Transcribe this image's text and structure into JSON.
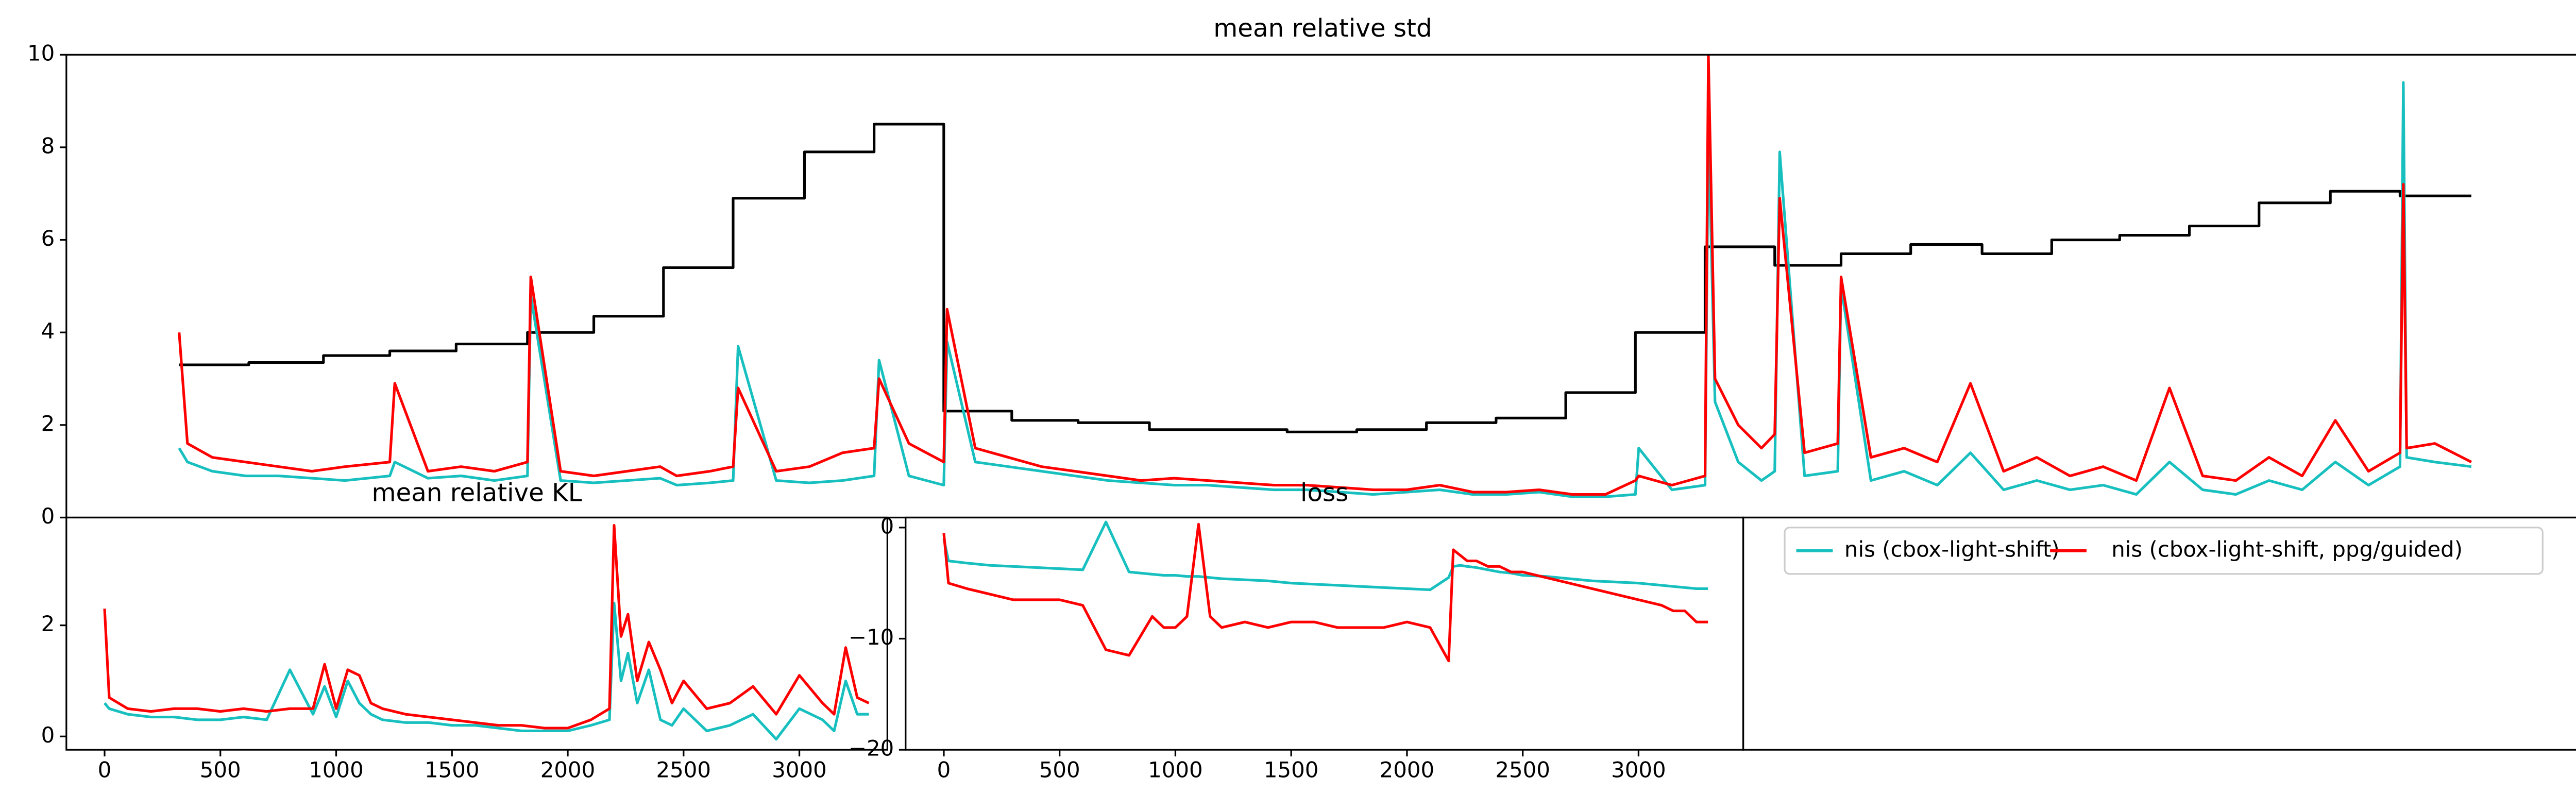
{
  "chart_data": [
    {
      "type": "line",
      "title": "mean relative std",
      "xlim": [
        -68,
        1447
      ],
      "ylim": [
        0,
        10
      ],
      "yticks": [
        0,
        2,
        4,
        6,
        8,
        10
      ],
      "series": [
        {
          "color": "#000000",
          "step": "post",
          "x": [
            0,
            42,
            87,
            127,
            167,
            210,
            250,
            292,
            334,
            377,
            419,
            461,
            502,
            542,
            585,
            627,
            668,
            710,
            752,
            794,
            836,
            878,
            920,
            962,
            1002,
            1044,
            1087,
            1129,
            1170,
            1212,
            1254,
            1297,
            1339,
            1382
          ],
          "values": [
            3.3,
            3.35,
            3.5,
            3.6,
            3.75,
            4.0,
            4.35,
            5.4,
            6.9,
            7.9,
            8.5,
            2.3,
            2.1,
            2.05,
            1.9,
            1.9,
            1.85,
            1.9,
            2.05,
            2.15,
            2.7,
            4.0,
            5.85,
            5.45,
            5.7,
            5.9,
            5.7,
            6.0,
            6.1,
            6.3,
            6.8,
            7.05,
            6.95,
            6.95
          ]
        },
        {
          "name": "nis (cbox-light-shift)",
          "color": "#17bfbf",
          "x": [
            0,
            5,
            20,
            40,
            60,
            80,
            100,
            127,
            130,
            150,
            170,
            190,
            210,
            212,
            230,
            250,
            270,
            290,
            300,
            320,
            334,
            337,
            360,
            380,
            400,
            419,
            422,
            440,
            461,
            463,
            480,
            500,
            520,
            540,
            560,
            580,
            600,
            620,
            640,
            660,
            680,
            700,
            720,
            740,
            760,
            780,
            800,
            820,
            840,
            860,
            878,
            880,
            900,
            920,
            922,
            926,
            940,
            954,
            962,
            965,
            980,
            1000,
            1002,
            1020,
            1040,
            1060,
            1080,
            1100,
            1120,
            1140,
            1160,
            1180,
            1200,
            1220,
            1240,
            1260,
            1280,
            1300,
            1320,
            1339,
            1341,
            1343,
            1360,
            1382
          ],
          "values": [
            1.5,
            1.2,
            1.0,
            0.9,
            0.9,
            0.85,
            0.8,
            0.9,
            1.2,
            0.85,
            0.9,
            0.8,
            0.9,
            4.8,
            0.8,
            0.75,
            0.8,
            0.85,
            0.7,
            0.75,
            0.8,
            3.7,
            0.8,
            0.75,
            0.8,
            0.9,
            3.4,
            0.9,
            0.7,
            3.8,
            1.2,
            1.1,
            1.0,
            0.9,
            0.8,
            0.75,
            0.7,
            0.7,
            0.65,
            0.6,
            0.6,
            0.55,
            0.5,
            0.55,
            0.6,
            0.5,
            0.5,
            0.55,
            0.45,
            0.45,
            0.5,
            1.5,
            0.6,
            0.7,
            8.5,
            2.5,
            1.2,
            0.8,
            1.0,
            7.9,
            0.9,
            1.0,
            5.0,
            0.8,
            1.0,
            0.7,
            1.4,
            0.6,
            0.8,
            0.6,
            0.7,
            0.5,
            1.2,
            0.6,
            0.5,
            0.8,
            0.6,
            1.2,
            0.7,
            1.1,
            9.4,
            1.3,
            1.2,
            1.1
          ]
        },
        {
          "name": "nis (cbox-light-shift, ppg/guided)",
          "color": "#ff0000",
          "x": [
            0,
            5,
            20,
            40,
            60,
            80,
            100,
            127,
            130,
            150,
            170,
            190,
            210,
            212,
            230,
            250,
            270,
            290,
            300,
            320,
            334,
            337,
            360,
            380,
            400,
            419,
            422,
            440,
            461,
            463,
            480,
            500,
            520,
            540,
            560,
            580,
            600,
            620,
            640,
            660,
            680,
            700,
            720,
            740,
            760,
            780,
            800,
            820,
            840,
            860,
            878,
            880,
            900,
            920,
            922,
            926,
            940,
            954,
            962,
            965,
            980,
            1000,
            1002,
            1020,
            1040,
            1060,
            1080,
            1100,
            1120,
            1140,
            1160,
            1180,
            1200,
            1220,
            1240,
            1260,
            1280,
            1300,
            1320,
            1339,
            1341,
            1343,
            1360,
            1382
          ],
          "values": [
            4.0,
            1.6,
            1.3,
            1.2,
            1.1,
            1.0,
            1.1,
            1.2,
            2.9,
            1.0,
            1.1,
            1.0,
            1.2,
            5.2,
            1.0,
            0.9,
            1.0,
            1.1,
            0.9,
            1.0,
            1.1,
            2.8,
            1.0,
            1.1,
            1.4,
            1.5,
            3.0,
            1.6,
            1.2,
            4.5,
            1.5,
            1.3,
            1.1,
            1.0,
            0.9,
            0.8,
            0.85,
            0.8,
            0.75,
            0.7,
            0.7,
            0.65,
            0.6,
            0.6,
            0.7,
            0.55,
            0.55,
            0.6,
            0.5,
            0.5,
            0.8,
            0.9,
            0.7,
            0.9,
            10,
            3.0,
            2.0,
            1.5,
            1.8,
            6.9,
            1.4,
            1.6,
            5.2,
            1.3,
            1.5,
            1.2,
            2.9,
            1.0,
            1.3,
            0.9,
            1.1,
            0.8,
            2.8,
            0.9,
            0.8,
            1.3,
            0.9,
            2.1,
            1.0,
            1.4,
            7.2,
            1.5,
            1.6,
            1.2
          ]
        }
      ]
    },
    {
      "type": "line",
      "title": "mean relative KL",
      "xlim": [
        -165,
        3380
      ],
      "ylim": [
        -0.24,
        3.94
      ],
      "yticks": [
        0,
        2
      ],
      "xticks": [
        0,
        500,
        1000,
        1500,
        2000,
        2500,
        3000
      ],
      "x": [
        0,
        20,
        100,
        200,
        300,
        400,
        500,
        600,
        700,
        800,
        900,
        950,
        1000,
        1050,
        1100,
        1150,
        1200,
        1300,
        1400,
        1500,
        1600,
        1700,
        1800,
        1900,
        2000,
        2100,
        2180,
        2200,
        2230,
        2260,
        2300,
        2350,
        2400,
        2450,
        2500,
        2600,
        2700,
        2800,
        2900,
        3000,
        3100,
        3150,
        3200,
        3250,
        3300
      ],
      "series": [
        {
          "name": "nis (cbox-light-shift)",
          "color": "#17bfbf",
          "values": [
            0.6,
            0.5,
            0.4,
            0.35,
            0.35,
            0.3,
            0.3,
            0.35,
            0.3,
            1.2,
            0.4,
            0.9,
            0.35,
            1.0,
            0.6,
            0.4,
            0.3,
            0.25,
            0.25,
            0.2,
            0.2,
            0.15,
            0.1,
            0.1,
            0.1,
            0.2,
            0.3,
            2.4,
            1.0,
            1.5,
            0.6,
            1.2,
            0.3,
            0.2,
            0.5,
            0.1,
            0.2,
            0.4,
            -0.05,
            0.5,
            0.3,
            0.1,
            1.0,
            0.4,
            0.4
          ]
        },
        {
          "name": "nis (cbox-light-shift, ppg/guided)",
          "color": "#ff0000",
          "values": [
            2.3,
            0.7,
            0.5,
            0.45,
            0.5,
            0.5,
            0.45,
            0.5,
            0.45,
            0.5,
            0.5,
            1.3,
            0.5,
            1.2,
            1.1,
            0.6,
            0.5,
            0.4,
            0.35,
            0.3,
            0.25,
            0.2,
            0.2,
            0.15,
            0.15,
            0.3,
            0.5,
            3.8,
            1.8,
            2.2,
            1.0,
            1.7,
            1.2,
            0.6,
            1.0,
            0.5,
            0.6,
            0.9,
            0.4,
            1.1,
            0.6,
            0.4,
            1.6,
            0.7,
            0.6
          ]
        }
      ]
    },
    {
      "type": "line",
      "title": "loss",
      "xlim": [
        -165,
        3452
      ],
      "ylim": [
        -20,
        0.9
      ],
      "yticks": [
        0,
        {
          "value": -10,
          "label": "−10"
        },
        {
          "value": -20,
          "label": "−20"
        }
      ],
      "xticks": [
        0,
        500,
        1000,
        1500,
        2000,
        2500,
        3000
      ],
      "x": [
        0,
        20,
        100,
        200,
        300,
        400,
        500,
        600,
        700,
        800,
        900,
        950,
        1000,
        1050,
        1100,
        1150,
        1200,
        1300,
        1400,
        1500,
        1600,
        1700,
        1800,
        1900,
        2000,
        2100,
        2180,
        2200,
        2230,
        2260,
        2300,
        2350,
        2400,
        2450,
        2500,
        2600,
        2700,
        2800,
        2900,
        3000,
        3100,
        3150,
        3200,
        3250,
        3300
      ],
      "series": [
        {
          "name": "nis (cbox-light-shift)",
          "color": "#17bfbf",
          "values": [
            -1,
            -3,
            -3.2,
            -3.4,
            -3.5,
            -3.6,
            -3.7,
            -3.8,
            0.5,
            -4,
            -4.2,
            -4.3,
            -4.3,
            -4.4,
            -4.4,
            -4.5,
            -4.6,
            -4.7,
            -4.8,
            -5,
            -5.1,
            -5.2,
            -5.3,
            -5.4,
            -5.5,
            -5.6,
            -4.5,
            -3.5,
            -3.4,
            -3.5,
            -3.6,
            -3.8,
            -4,
            -4.1,
            -4.3,
            -4.4,
            -4.6,
            -4.8,
            -4.9,
            -5,
            -5.2,
            -5.3,
            -5.4,
            -5.5,
            -5.5
          ]
        },
        {
          "name": "nis (cbox-light-shift, ppg/guided)",
          "color": "#ff0000",
          "values": [
            -0.5,
            -5,
            -5.5,
            -6,
            -6.5,
            -6.5,
            -6.5,
            -7,
            -11,
            -11.5,
            -8,
            -9,
            -9,
            -8,
            0.3,
            -8,
            -9,
            -8.5,
            -9,
            -8.5,
            -8.5,
            -9,
            -9,
            -9,
            -8.5,
            -9,
            -12,
            -2,
            -2.5,
            -3,
            -3,
            -3.5,
            -3.5,
            -4,
            -4,
            -4.5,
            -5,
            -5.5,
            -6,
            -6.5,
            -7,
            -7.5,
            -7.5,
            -8.5,
            -8.5
          ]
        }
      ]
    }
  ]
}
